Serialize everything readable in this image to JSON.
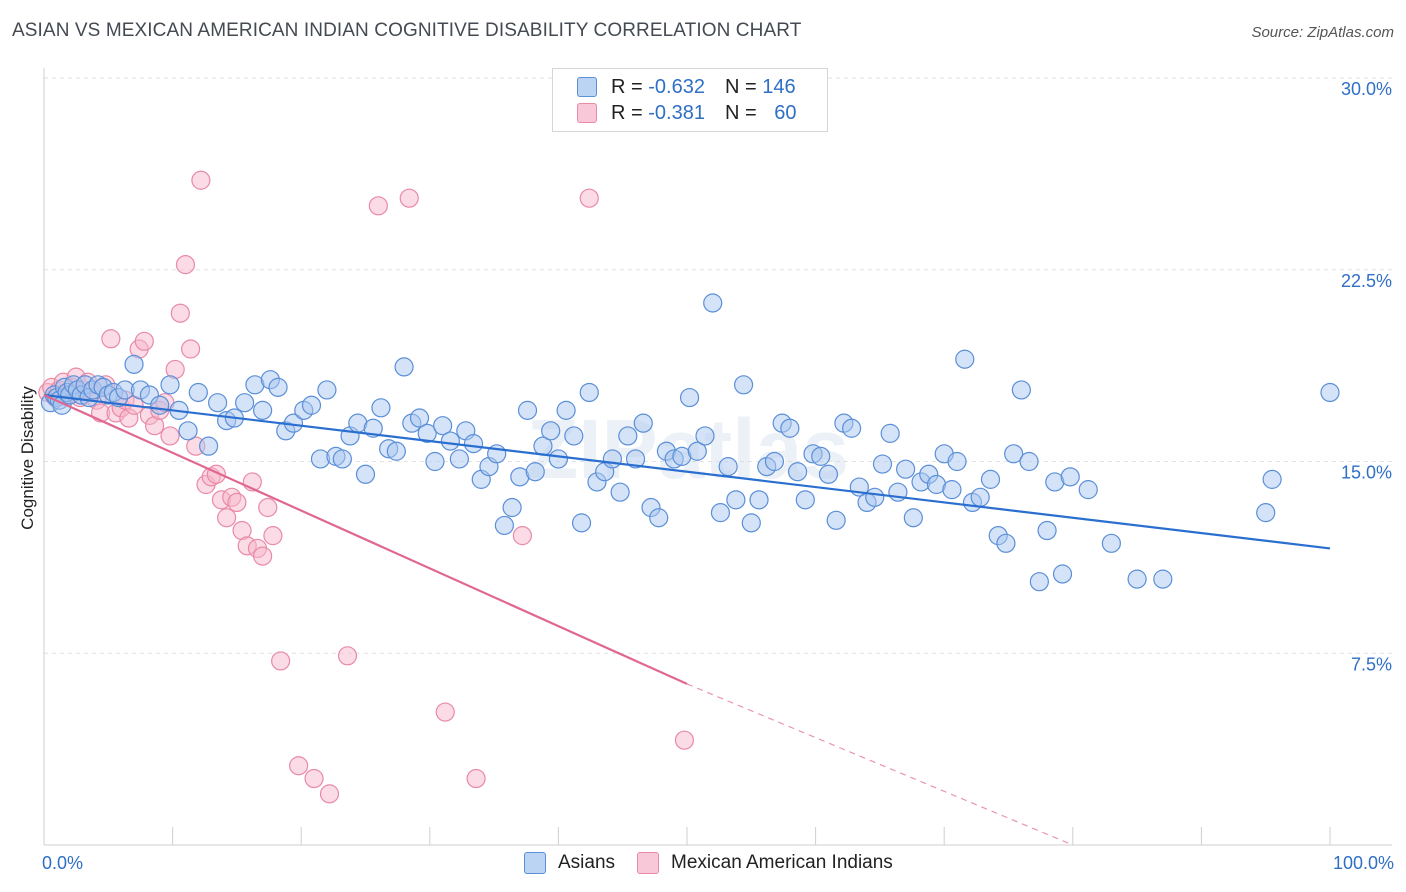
{
  "header": {
    "title": "ASIAN VS MEXICAN AMERICAN INDIAN COGNITIVE DISABILITY CORRELATION CHART",
    "source": "Source: ZipAtlas.com"
  },
  "legend": {
    "asian": {
      "r_label": "R = ",
      "r_value": "-0.632",
      "n_label": "N = ",
      "n_value": "146"
    },
    "mexican": {
      "r_label": "R = ",
      "r_value": "-0.381",
      "n_label": "N = ",
      "n_value": "60"
    }
  },
  "colors": {
    "asian_fill": "#a9c8f0",
    "asian_stroke": "#5b8fd8",
    "asian_line": "#2a6fd0",
    "mexican_fill": "#f7b8cc",
    "mexican_stroke": "#e88aa8",
    "mexican_line": "#e06890",
    "grid": "#e2e2e2",
    "axis_text": "#2f6fc6"
  },
  "watermark": "ZIPatlas",
  "chart_data": {
    "type": "scatter",
    "title": "ASIAN VS MEXICAN AMERICAN INDIAN COGNITIVE DISABILITY CORRELATION CHART",
    "xlabel": "",
    "ylabel": "Cognitive Disability",
    "xlim": [
      0,
      100
    ],
    "ylim": [
      0,
      30
    ],
    "x_tick_labels": [
      "0.0%",
      "100.0%"
    ],
    "y_ticks": [
      7.5,
      15.0,
      22.5,
      30.0
    ],
    "y_tick_labels": [
      "7.5%",
      "15.0%",
      "22.5%",
      "30.0%"
    ],
    "grid": true,
    "legend_position": "top-center",
    "series": [
      {
        "name": "Asians",
        "r": -0.632,
        "n": 146,
        "trend": {
          "x": [
            0,
            100
          ],
          "y": [
            17.6,
            11.6
          ]
        },
        "points": [
          [
            0.5,
            17.3
          ],
          [
            0.8,
            17.6
          ],
          [
            1,
            17.5
          ],
          [
            1.2,
            17.4
          ],
          [
            1.4,
            17.2
          ],
          [
            1.6,
            17.9
          ],
          [
            1.8,
            17.7
          ],
          [
            2,
            17.6
          ],
          [
            2.3,
            18.0
          ],
          [
            2.6,
            17.8
          ],
          [
            2.9,
            17.6
          ],
          [
            3.2,
            18.0
          ],
          [
            3.5,
            17.5
          ],
          [
            3.8,
            17.8
          ],
          [
            4.2,
            18.0
          ],
          [
            4.6,
            17.9
          ],
          [
            5,
            17.6
          ],
          [
            5.4,
            17.7
          ],
          [
            5.8,
            17.5
          ],
          [
            6.3,
            17.8
          ],
          [
            7,
            18.8
          ],
          [
            7.5,
            17.8
          ],
          [
            8.2,
            17.6
          ],
          [
            9,
            17.2
          ],
          [
            9.8,
            18.0
          ],
          [
            10.5,
            17.0
          ],
          [
            11.2,
            16.2
          ],
          [
            12,
            17.7
          ],
          [
            12.8,
            15.6
          ],
          [
            13.5,
            17.3
          ],
          [
            14.2,
            16.6
          ],
          [
            14.8,
            16.7
          ],
          [
            15.6,
            17.3
          ],
          [
            16.4,
            18.0
          ],
          [
            17,
            17.0
          ],
          [
            17.6,
            18.2
          ],
          [
            18.2,
            17.9
          ],
          [
            18.8,
            16.2
          ],
          [
            19.4,
            16.5
          ],
          [
            20.2,
            17.0
          ],
          [
            20.8,
            17.2
          ],
          [
            21.5,
            15.1
          ],
          [
            22,
            17.8
          ],
          [
            22.7,
            15.2
          ],
          [
            23.2,
            15.1
          ],
          [
            23.8,
            16.0
          ],
          [
            24.4,
            16.5
          ],
          [
            25,
            14.5
          ],
          [
            25.6,
            16.3
          ],
          [
            26.2,
            17.1
          ],
          [
            26.8,
            15.5
          ],
          [
            27.4,
            15.4
          ],
          [
            28,
            18.7
          ],
          [
            28.6,
            16.5
          ],
          [
            29.2,
            16.7
          ],
          [
            29.8,
            16.1
          ],
          [
            30.4,
            15.0
          ],
          [
            31,
            16.4
          ],
          [
            31.6,
            15.8
          ],
          [
            32.3,
            15.1
          ],
          [
            32.8,
            16.2
          ],
          [
            33.4,
            15.7
          ],
          [
            34,
            14.3
          ],
          [
            34.6,
            14.8
          ],
          [
            35.2,
            15.3
          ],
          [
            35.8,
            12.5
          ],
          [
            36.4,
            13.2
          ],
          [
            37,
            14.4
          ],
          [
            37.6,
            17.0
          ],
          [
            38.2,
            14.6
          ],
          [
            38.8,
            15.6
          ],
          [
            39.4,
            16.2
          ],
          [
            40,
            15.1
          ],
          [
            40.6,
            17.0
          ],
          [
            41.2,
            16.0
          ],
          [
            41.8,
            12.6
          ],
          [
            42.4,
            17.7
          ],
          [
            43,
            14.2
          ],
          [
            43.6,
            14.6
          ],
          [
            44.2,
            15.1
          ],
          [
            44.8,
            13.8
          ],
          [
            45.4,
            16.0
          ],
          [
            46,
            15.1
          ],
          [
            46.6,
            16.5
          ],
          [
            47.2,
            13.2
          ],
          [
            47.8,
            12.8
          ],
          [
            48.4,
            15.4
          ],
          [
            49,
            15.1
          ],
          [
            49.6,
            15.2
          ],
          [
            50.2,
            17.5
          ],
          [
            50.8,
            15.4
          ],
          [
            51.4,
            16.0
          ],
          [
            52,
            21.2
          ],
          [
            52.6,
            13.0
          ],
          [
            53.2,
            14.8
          ],
          [
            53.8,
            13.5
          ],
          [
            54.4,
            18.0
          ],
          [
            55,
            12.6
          ],
          [
            55.6,
            13.5
          ],
          [
            56.2,
            14.8
          ],
          [
            56.8,
            15.0
          ],
          [
            57.4,
            16.5
          ],
          [
            58,
            16.3
          ],
          [
            58.6,
            14.6
          ],
          [
            59.2,
            13.5
          ],
          [
            59.8,
            15.3
          ],
          [
            60.4,
            15.2
          ],
          [
            61,
            14.5
          ],
          [
            61.6,
            12.7
          ],
          [
            62.2,
            16.5
          ],
          [
            62.8,
            16.3
          ],
          [
            63.4,
            14.0
          ],
          [
            64,
            13.4
          ],
          [
            64.6,
            13.6
          ],
          [
            65.2,
            14.9
          ],
          [
            65.8,
            16.1
          ],
          [
            66.4,
            13.8
          ],
          [
            67,
            14.7
          ],
          [
            67.6,
            12.8
          ],
          [
            68.2,
            14.2
          ],
          [
            68.8,
            14.5
          ],
          [
            69.4,
            14.1
          ],
          [
            70,
            15.3
          ],
          [
            70.6,
            13.9
          ],
          [
            71,
            15.0
          ],
          [
            71.6,
            19.0
          ],
          [
            72.2,
            13.4
          ],
          [
            72.8,
            13.6
          ],
          [
            73.6,
            14.3
          ],
          [
            74.2,
            12.1
          ],
          [
            74.8,
            11.8
          ],
          [
            75.4,
            15.3
          ],
          [
            76,
            17.8
          ],
          [
            76.6,
            15.0
          ],
          [
            77.4,
            10.3
          ],
          [
            78,
            12.3
          ],
          [
            78.6,
            14.2
          ],
          [
            79.2,
            10.6
          ],
          [
            79.8,
            14.4
          ],
          [
            81.2,
            13.9
          ],
          [
            83,
            11.8
          ],
          [
            85,
            10.4
          ],
          [
            87,
            10.4
          ],
          [
            95,
            13.0
          ],
          [
            95.5,
            14.3
          ],
          [
            100,
            17.7
          ]
        ]
      },
      {
        "name": "Mexican American Indians",
        "r": -0.381,
        "n": 60,
        "trend": {
          "x": [
            0,
            50
          ],
          "y": [
            17.6,
            6.3
          ]
        },
        "trend_dashed": {
          "x": [
            50,
            80
          ],
          "y": [
            6.3,
            0.0
          ]
        },
        "points": [
          [
            0.3,
            17.7
          ],
          [
            0.6,
            17.9
          ],
          [
            0.9,
            17.5
          ],
          [
            1.2,
            17.8
          ],
          [
            1.5,
            18.1
          ],
          [
            1.8,
            17.6
          ],
          [
            2.2,
            17.9
          ],
          [
            2.5,
            18.3
          ],
          [
            2.8,
            17.5
          ],
          [
            3.1,
            17.8
          ],
          [
            3.4,
            18.1
          ],
          [
            3.7,
            17.7
          ],
          [
            4.1,
            17.4
          ],
          [
            4.4,
            16.9
          ],
          [
            4.8,
            18.0
          ],
          [
            5.2,
            19.8
          ],
          [
            5.6,
            16.9
          ],
          [
            6,
            17.1
          ],
          [
            6.3,
            17.4
          ],
          [
            6.6,
            16.7
          ],
          [
            7,
            17.2
          ],
          [
            7.4,
            19.4
          ],
          [
            7.8,
            19.7
          ],
          [
            8.2,
            16.8
          ],
          [
            8.6,
            16.4
          ],
          [
            9,
            17.0
          ],
          [
            9.4,
            17.3
          ],
          [
            9.8,
            16.0
          ],
          [
            10.2,
            18.6
          ],
          [
            10.6,
            20.8
          ],
          [
            11,
            22.7
          ],
          [
            11.4,
            19.4
          ],
          [
            11.8,
            15.6
          ],
          [
            12.2,
            26.0
          ],
          [
            12.6,
            14.1
          ],
          [
            13,
            14.4
          ],
          [
            13.4,
            14.5
          ],
          [
            13.8,
            13.5
          ],
          [
            14.2,
            12.8
          ],
          [
            14.6,
            13.6
          ],
          [
            15,
            13.4
          ],
          [
            15.4,
            12.3
          ],
          [
            15.8,
            11.7
          ],
          [
            16.2,
            14.2
          ],
          [
            16.6,
            11.6
          ],
          [
            17,
            11.3
          ],
          [
            17.4,
            13.2
          ],
          [
            17.8,
            12.1
          ],
          [
            18.4,
            7.2
          ],
          [
            19.8,
            3.1
          ],
          [
            21,
            2.6
          ],
          [
            22.2,
            2.0
          ],
          [
            23.6,
            7.4
          ],
          [
            26,
            25.0
          ],
          [
            28.4,
            25.3
          ],
          [
            31.2,
            5.2
          ],
          [
            33.6,
            2.6
          ],
          [
            37.2,
            12.1
          ],
          [
            42.4,
            25.3
          ],
          [
            49.8,
            4.1
          ]
        ]
      }
    ]
  }
}
